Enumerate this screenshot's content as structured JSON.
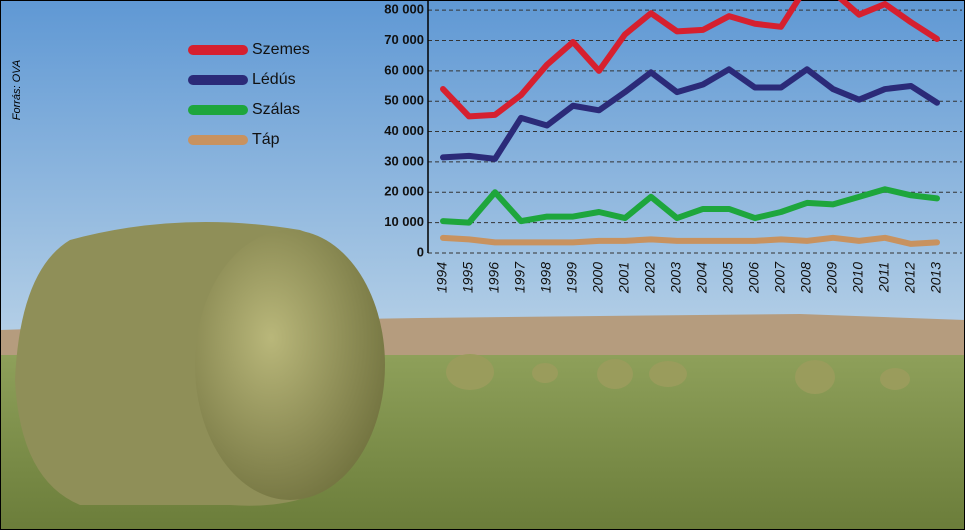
{
  "chart_data": {
    "type": "line",
    "source": "Forrás: OVA",
    "categories": [
      "1994",
      "1995",
      "1996",
      "1997",
      "1998",
      "1999",
      "2000",
      "2001",
      "2002",
      "2003",
      "2004",
      "2005",
      "2006",
      "2007",
      "2008",
      "2009",
      "2010",
      "2011",
      "2012",
      "2013"
    ],
    "series": [
      {
        "name": "Szemes",
        "color": "#d6202f",
        "values": [
          54000,
          45000,
          45500,
          52000,
          62000,
          69500,
          60000,
          72000,
          79000,
          73000,
          73500,
          78000,
          75500,
          74500,
          88000,
          86000,
          78500,
          82000,
          76000,
          70500
        ]
      },
      {
        "name": "Lédús",
        "color": "#2b2a78",
        "values": [
          31500,
          32000,
          31000,
          44500,
          42000,
          48500,
          47000,
          53000,
          59500,
          53000,
          55500,
          60500,
          54500,
          54500,
          60500,
          54000,
          50500,
          54000,
          55000,
          49500
        ]
      },
      {
        "name": "Szálas",
        "color": "#1ea63c",
        "values": [
          10500,
          10000,
          20000,
          10500,
          12000,
          12000,
          13500,
          11500,
          18500,
          11500,
          14500,
          14500,
          11500,
          13500,
          16500,
          16000,
          18500,
          21000,
          19000,
          18000
        ]
      },
      {
        "name": "Táp",
        "color": "#c8925f",
        "values": [
          5000,
          4500,
          3500,
          3500,
          3500,
          3500,
          4000,
          4000,
          4500,
          4000,
          4000,
          4000,
          4000,
          4500,
          4000,
          5000,
          4000,
          5000,
          3000,
          3500
        ]
      }
    ],
    "ylim": [
      0,
      83000
    ],
    "yticks": [
      0,
      {
        "value": 10000,
        "label": "10 000"
      },
      {
        "value": 20000,
        "label": "20 000"
      },
      {
        "value": 30000,
        "label": "30 000"
      },
      {
        "value": 40000,
        "label": "40 000"
      },
      {
        "value": 50000,
        "label": "50 000"
      },
      {
        "value": 60000,
        "label": "60 000"
      },
      {
        "value": 70000,
        "label": "70 000"
      },
      {
        "value": 80000,
        "label": "80 000"
      }
    ],
    "grid": true
  }
}
